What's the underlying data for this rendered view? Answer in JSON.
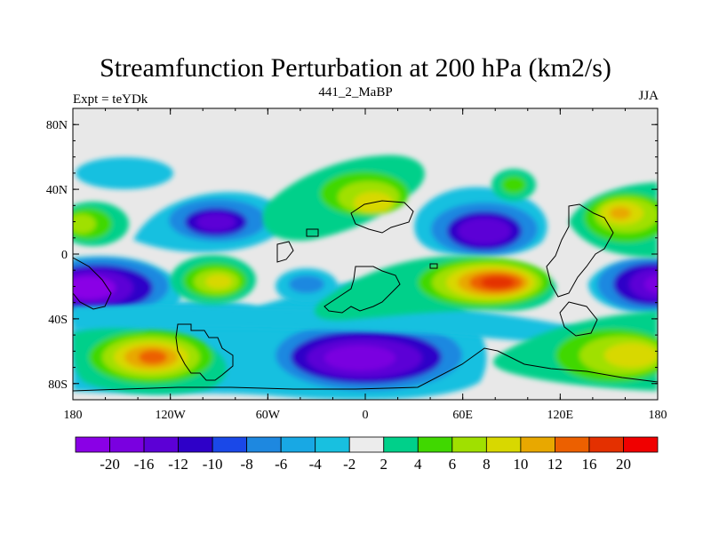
{
  "title": "Streamfunction Perturbation at 200 hPa (km2/s)",
  "left_label": "Expt = teYDk",
  "center_label": "441_2_MaBP",
  "right_label": "JJA",
  "lat_ticks": [
    {
      "lat": 80,
      "label": "80N"
    },
    {
      "lat": 40,
      "label": "40N"
    },
    {
      "lat": 0,
      "label": "0"
    },
    {
      "lat": -40,
      "label": "40S"
    },
    {
      "lat": -80,
      "label": "80S"
    }
  ],
  "lon_ticks": [
    {
      "lon": -180,
      "label": "180"
    },
    {
      "lon": -120,
      "label": "120W"
    },
    {
      "lon": -60,
      "label": "60W"
    },
    {
      "lon": 0,
      "label": "0"
    },
    {
      "lon": 60,
      "label": "60E"
    },
    {
      "lon": 120,
      "label": "120E"
    },
    {
      "lon": 180,
      "label": "180"
    }
  ],
  "colorbar": {
    "colors": [
      "#8a00e6",
      "#7a00e0",
      "#5c00d6",
      "#2e00c8",
      "#1a48e8",
      "#1e88e0",
      "#18a8e4",
      "#18c0e0",
      "#ececec",
      "#00d08a",
      "#40d800",
      "#a0e000",
      "#d8d800",
      "#e8a800",
      "#ec6000",
      "#e43000",
      "#f00000"
    ],
    "labels": [
      "-20",
      "-16",
      "-12",
      "-10",
      "-8",
      "-6",
      "-4",
      "-2",
      "2",
      "4",
      "6",
      "8",
      "10",
      "12",
      "16",
      "20"
    ]
  },
  "map_data": {
    "lon_range": [
      -180,
      180
    ],
    "lat_range": [
      -90,
      90
    ],
    "background_color": "#e8e8e8",
    "features": [
      {
        "name": "neg-cell-atlantic-africa-south",
        "lon": 5,
        "lat": -62,
        "peak": -20
      },
      {
        "name": "neg-cell-south-pacific-west",
        "lon": -165,
        "lat": -20,
        "peak": -20
      },
      {
        "name": "neg-cell-west-pacific",
        "lon": 175,
        "lat": -20,
        "peak": -18
      },
      {
        "name": "neg-cell-asia",
        "lon": 67,
        "lat": 15,
        "peak": -16
      },
      {
        "name": "neg-cell-north-america",
        "lon": -95,
        "lat": 22,
        "peak": -12
      },
      {
        "name": "pos-cell-indian-ocean",
        "lon": 80,
        "lat": -18,
        "peak": 20
      },
      {
        "name": "pos-cell-south-pacific",
        "lon": -130,
        "lat": -62,
        "peak": 16
      },
      {
        "name": "pos-cell-north-pacific",
        "lon": 160,
        "lat": 25,
        "peak": 12
      },
      {
        "name": "pos-cell-south-atlantic",
        "lon": -100,
        "lat": -18,
        "peak": 10
      }
    ]
  }
}
